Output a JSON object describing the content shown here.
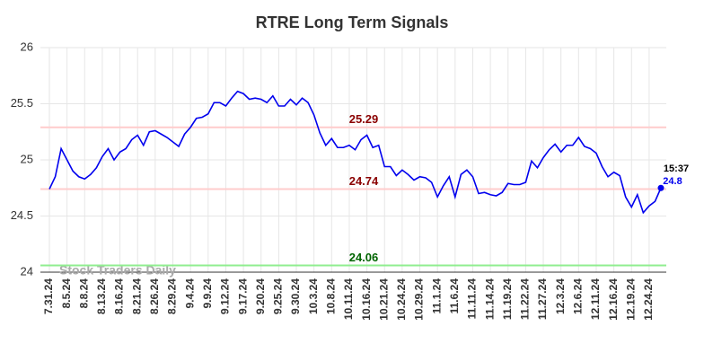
{
  "chart_data": {
    "type": "line",
    "title": "RTRE Long Term Signals",
    "categories": [
      "7.31.24",
      null,
      null,
      "8.5.24",
      null,
      null,
      "8.8.24",
      null,
      null,
      "8.13.24",
      null,
      null,
      "8.16.24",
      null,
      null,
      "8.21.24",
      null,
      null,
      "8.26.24",
      null,
      null,
      "8.29.24",
      null,
      null,
      "9.4.24",
      null,
      null,
      "9.9.24",
      null,
      null,
      "9.12.24",
      null,
      null,
      "9.17.24",
      null,
      null,
      "9.20.24",
      null,
      null,
      "9.25.24",
      null,
      null,
      "9.30.24",
      null,
      null,
      "10.3.24",
      null,
      null,
      "10.8.24",
      null,
      null,
      "10.11.24",
      null,
      null,
      "10.16.24",
      null,
      null,
      "10.21.24",
      null,
      null,
      "10.24.24",
      null,
      null,
      "10.29.24",
      null,
      null,
      "11.1.24",
      null,
      null,
      "11.6.24",
      null,
      null,
      "11.11.24",
      null,
      null,
      "11.14.24",
      null,
      null,
      "11.19.24",
      null,
      null,
      "11.22.24",
      null,
      null,
      "11.27.24",
      null,
      null,
      "12.3.24",
      null,
      null,
      "12.6.24",
      null,
      null,
      "12.11.24",
      null,
      null,
      "12.16.24",
      null,
      null,
      "12.19.24",
      null,
      null,
      "12.24.24",
      null,
      null
    ],
    "values": [
      24.74,
      24.85,
      25.1,
      25.0,
      24.9,
      24.85,
      24.83,
      24.87,
      24.93,
      25.03,
      25.1,
      25.0,
      25.07,
      25.1,
      25.18,
      25.22,
      25.13,
      25.25,
      25.26,
      25.23,
      25.2,
      25.16,
      25.12,
      25.23,
      25.29,
      25.37,
      25.38,
      25.41,
      25.51,
      25.51,
      25.48,
      25.55,
      25.61,
      25.59,
      25.54,
      25.55,
      25.54,
      25.51,
      25.57,
      25.48,
      25.48,
      25.54,
      25.49,
      25.55,
      25.51,
      25.4,
      25.24,
      25.13,
      25.19,
      25.11,
      25.11,
      25.13,
      25.09,
      25.18,
      25.22,
      25.11,
      25.13,
      24.94,
      24.94,
      24.86,
      24.91,
      24.87,
      24.82,
      24.85,
      24.84,
      24.8,
      24.67,
      24.77,
      24.85,
      24.67,
      24.87,
      24.91,
      24.85,
      24.7,
      24.71,
      24.69,
      24.68,
      24.71,
      24.79,
      24.78,
      24.78,
      24.8,
      24.99,
      24.93,
      25.02,
      25.09,
      25.14,
      25.07,
      25.13,
      25.13,
      25.2,
      25.12,
      25.1,
      25.06,
      24.94,
      24.85,
      24.89,
      24.86,
      24.67,
      24.58,
      24.69,
      24.53,
      24.59,
      24.63,
      24.75
    ],
    "color": "#0000ee",
    "ylim": [
      24,
      26
    ],
    "yticks": [
      24,
      24.5,
      25,
      25.5,
      26
    ],
    "grid": true,
    "hlines": [
      {
        "value": 25.29,
        "color": "#ffcccc",
        "label_color": "#8b0000"
      },
      {
        "value": 24.74,
        "color": "#ffcccc",
        "label_color": "#8b0000"
      },
      {
        "value": 24.06,
        "color": "#90ee90",
        "label_color": "#006400"
      }
    ],
    "last_time": "15:37",
    "last_label": "24.8",
    "watermark": "Stock Traders Daily"
  }
}
